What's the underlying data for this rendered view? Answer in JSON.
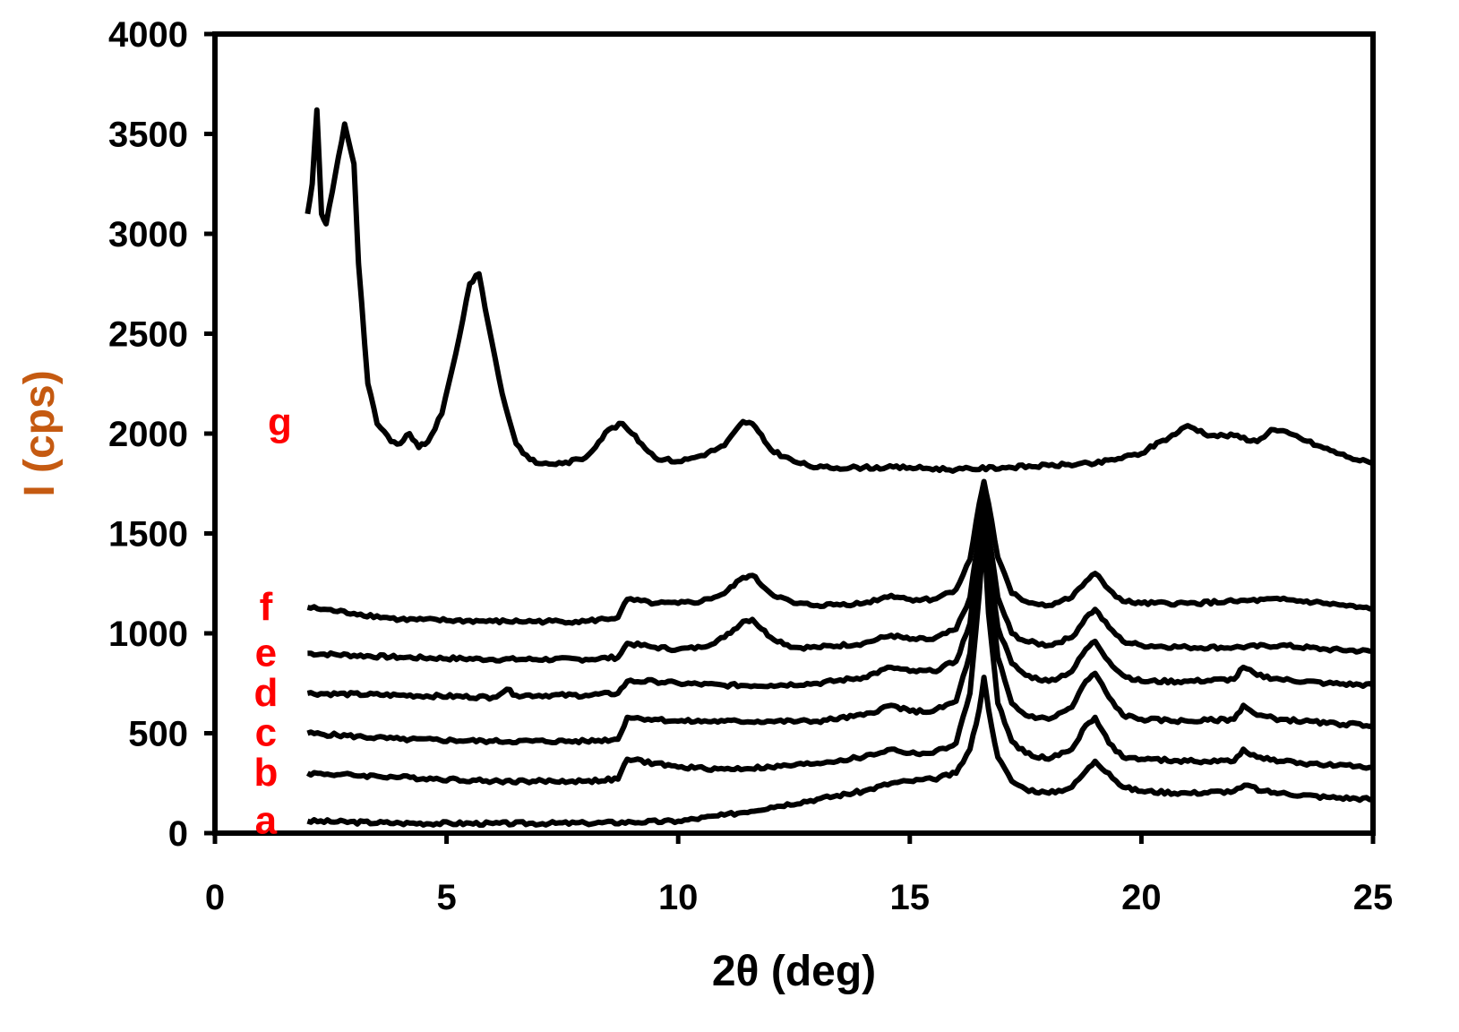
{
  "colors": {
    "axis": "#000000",
    "series": "#000000",
    "xlabel": "#000000",
    "ylabel": "#c55a11",
    "series_label": "#ff0000"
  },
  "chart_data": {
    "type": "line",
    "title": "",
    "xlabel": "2θ (deg)",
    "ylabel": "I (cps)",
    "xlim": [
      0,
      25
    ],
    "ylim": [
      0,
      4000
    ],
    "xticks": [
      0,
      5,
      10,
      15,
      20,
      25
    ],
    "yticks": [
      0,
      500,
      1000,
      1500,
      2000,
      2500,
      3000,
      3500,
      4000
    ],
    "grid": false,
    "legend": "none",
    "series": [
      {
        "name": "a",
        "x": [
          2,
          4,
          6,
          8,
          9,
          10,
          11,
          12,
          13,
          14,
          14.6,
          15,
          15.5,
          16,
          16.3,
          16.5,
          16.6,
          16.7,
          16.9,
          17.2,
          17.5,
          18,
          18.5,
          18.8,
          19,
          19.3,
          19.6,
          20,
          21,
          22,
          22.3,
          22.6,
          23,
          24,
          25
        ],
        "y": [
          60,
          50,
          48,
          50,
          55,
          60,
          90,
          130,
          170,
          210,
          250,
          260,
          270,
          300,
          420,
          620,
          780,
          620,
          380,
          260,
          220,
          200,
          230,
          310,
          360,
          300,
          230,
          210,
          200,
          210,
          240,
          210,
          200,
          180,
          170
        ]
      },
      {
        "name": "b",
        "x": [
          2,
          4,
          6,
          8,
          8.7,
          8.9,
          9.5,
          10,
          11,
          12,
          13,
          14,
          14.6,
          15,
          15.5,
          16,
          16.3,
          16.5,
          16.6,
          16.7,
          16.9,
          17.2,
          17.5,
          18,
          18.5,
          18.8,
          19,
          19.3,
          19.6,
          20,
          21,
          22,
          22.2,
          22.5,
          23,
          24,
          25
        ],
        "y": [
          300,
          280,
          260,
          260,
          270,
          370,
          350,
          330,
          320,
          330,
          350,
          380,
          420,
          400,
          400,
          450,
          700,
          1200,
          1520,
          1100,
          650,
          460,
          400,
          370,
          420,
          540,
          580,
          450,
          380,
          370,
          360,
          360,
          420,
          380,
          360,
          340,
          330
        ]
      },
      {
        "name": "c",
        "x": [
          2,
          4,
          6,
          8,
          8.7,
          8.9,
          9.5,
          10,
          11,
          12,
          13,
          14,
          14.6,
          15,
          15.5,
          16,
          16.3,
          16.5,
          16.6,
          16.7,
          16.9,
          17.2,
          17.5,
          18,
          18.5,
          18.8,
          19,
          19.3,
          19.6,
          20,
          21,
          22,
          22.2,
          22.5,
          23,
          24,
          25
        ],
        "y": [
          500,
          470,
          460,
          460,
          470,
          580,
          570,
          560,
          560,
          560,
          560,
          590,
          640,
          610,
          610,
          660,
          900,
          1350,
          1650,
          1300,
          880,
          650,
          590,
          570,
          630,
          760,
          800,
          680,
          590,
          570,
          560,
          570,
          640,
          590,
          570,
          550,
          540
        ]
      },
      {
        "name": "d",
        "x": [
          2,
          4,
          6,
          6.3,
          6.5,
          8,
          8.7,
          8.9,
          9.5,
          10,
          11,
          12,
          13,
          14,
          14.6,
          15,
          15.5,
          16,
          16.3,
          16.5,
          16.6,
          16.7,
          16.9,
          17.2,
          17.5,
          18,
          18.5,
          18.8,
          19,
          19.3,
          19.6,
          20,
          21,
          22,
          22.2,
          22.5,
          23,
          24,
          25
        ],
        "y": [
          700,
          690,
          680,
          720,
          690,
          690,
          700,
          760,
          760,
          750,
          740,
          740,
          750,
          780,
          830,
          810,
          810,
          860,
          1050,
          1450,
          1700,
          1400,
          1030,
          850,
          790,
          760,
          810,
          920,
          960,
          860,
          790,
          760,
          760,
          770,
          830,
          790,
          770,
          750,
          740
        ]
      },
      {
        "name": "e",
        "x": [
          2,
          4,
          6,
          8,
          8.7,
          8.9,
          9.5,
          10,
          10.5,
          11,
          11.4,
          11.6,
          12,
          12.5,
          13,
          14,
          14.6,
          15,
          15.5,
          16,
          16.3,
          16.5,
          16.6,
          16.7,
          16.9,
          17.2,
          17.5,
          18,
          18.5,
          18.8,
          19,
          19.3,
          19.6,
          20,
          21,
          22,
          23,
          24,
          25
        ],
        "y": [
          900,
          880,
          870,
          870,
          880,
          950,
          930,
          920,
          930,
          980,
          1060,
          1070,
          980,
          930,
          930,
          950,
          990,
          970,
          970,
          1020,
          1180,
          1500,
          1730,
          1500,
          1180,
          1000,
          960,
          940,
          980,
          1080,
          1120,
          1030,
          960,
          940,
          930,
          930,
          940,
          920,
          910
        ]
      },
      {
        "name": "f",
        "x": [
          2,
          3,
          4,
          6,
          8,
          8.7,
          8.9,
          9.5,
          10,
          10.5,
          11,
          11.4,
          11.6,
          12,
          12.5,
          13,
          14,
          14.6,
          15,
          15.5,
          16,
          16.3,
          16.5,
          16.6,
          16.7,
          16.9,
          17.2,
          17.5,
          18,
          18.5,
          18.8,
          19,
          19.3,
          19.6,
          20,
          21,
          22,
          23,
          24,
          25
        ],
        "y": [
          1130,
          1100,
          1070,
          1060,
          1060,
          1080,
          1170,
          1150,
          1150,
          1160,
          1200,
          1280,
          1290,
          1200,
          1150,
          1140,
          1150,
          1190,
          1170,
          1170,
          1220,
          1370,
          1650,
          1760,
          1650,
          1380,
          1200,
          1160,
          1140,
          1180,
          1260,
          1300,
          1220,
          1160,
          1150,
          1150,
          1160,
          1170,
          1150,
          1120
        ]
      },
      {
        "name": "g",
        "x": [
          2,
          2.1,
          2.2,
          2.3,
          2.4,
          2.6,
          2.8,
          3,
          3.1,
          3.3,
          3.5,
          3.8,
          4,
          4.2,
          4.4,
          4.6,
          4.9,
          5.2,
          5.5,
          5.7,
          5.9,
          6.2,
          6.5,
          6.8,
          7,
          7.5,
          8,
          8.5,
          8.8,
          9,
          9.5,
          10,
          10.5,
          11,
          11.4,
          11.6,
          12,
          12.5,
          13,
          14,
          15,
          16,
          17,
          18,
          19,
          20,
          20.4,
          20.6,
          21,
          21.5,
          22,
          22.5,
          22.8,
          23.2,
          23.8,
          24.5,
          25
        ],
        "y": [
          3100,
          3250,
          3620,
          3100,
          3050,
          3300,
          3550,
          3350,
          2850,
          2250,
          2050,
          1960,
          1950,
          2000,
          1930,
          1960,
          2100,
          2400,
          2750,
          2800,
          2550,
          2200,
          1950,
          1870,
          1850,
          1850,
          1880,
          2020,
          2050,
          2000,
          1880,
          1860,
          1890,
          1940,
          2060,
          2050,
          1920,
          1860,
          1830,
          1830,
          1830,
          1820,
          1830,
          1840,
          1850,
          1900,
          1960,
          1980,
          2040,
          1990,
          1990,
          1960,
          2020,
          2000,
          1940,
          1880,
          1850
        ]
      }
    ]
  }
}
